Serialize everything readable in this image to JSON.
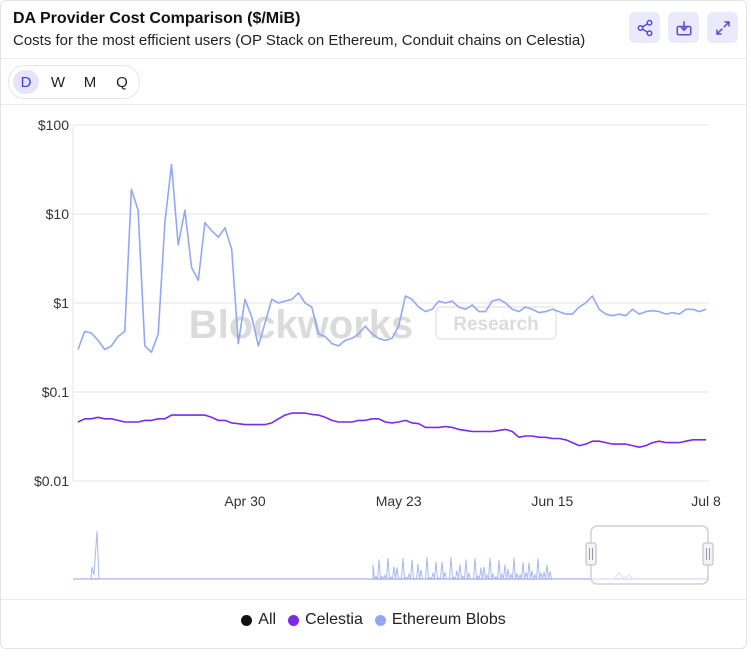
{
  "header": {
    "title": "DA Provider Cost Comparison ($/MiB)",
    "subtitle": "Costs for the most efficient users (OP Stack on Ethereum, Conduit chains on Celestia)"
  },
  "toolbar": {
    "share_icon": "share-icon",
    "download_icon": "download-icon",
    "expand_icon": "expand-icon"
  },
  "timeframes": {
    "options": [
      "D",
      "W",
      "M",
      "Q"
    ],
    "selected": "D"
  },
  "watermark": {
    "brand": "Blockworks",
    "tag": "Research"
  },
  "colors": {
    "celestia": "#7c2ae8",
    "ethereum_blobs": "#93a8f2",
    "all": "#111111",
    "active_tab": "#e6e4fb"
  },
  "legend": {
    "items": [
      {
        "label": "All",
        "color": "#111111"
      },
      {
        "label": "Celestia",
        "color": "#7c2ae8"
      },
      {
        "label": "Ethereum Blobs",
        "color": "#93a8f2"
      }
    ]
  },
  "chart_data": {
    "type": "line",
    "title": "DA Provider Cost Comparison ($/MiB)",
    "subtitle": "Costs for the most efficient users (OP Stack on Ethereum, Conduit chains on Celestia)",
    "y_scale": "log",
    "ylim": [
      0.01,
      100
    ],
    "y_ticks": [
      "$100",
      "$10",
      "$1",
      "$0.1",
      "$0.01"
    ],
    "y_tick_values": [
      100,
      10,
      1,
      0.1,
      0.01
    ],
    "x_ticks": [
      "Apr 30",
      "May 23",
      "Jun 15",
      "Jul 8"
    ],
    "x": [
      "Apr 5",
      "Apr 6",
      "Apr 7",
      "Apr 8",
      "Apr 9",
      "Apr 10",
      "Apr 11",
      "Apr 12",
      "Apr 13",
      "Apr 14",
      "Apr 15",
      "Apr 16",
      "Apr 17",
      "Apr 18",
      "Apr 19",
      "Apr 20",
      "Apr 21",
      "Apr 22",
      "Apr 23",
      "Apr 24",
      "Apr 25",
      "Apr 26",
      "Apr 27",
      "Apr 28",
      "Apr 29",
      "Apr 30",
      "May 1",
      "May 2",
      "May 3",
      "May 4",
      "May 5",
      "May 6",
      "May 7",
      "May 8",
      "May 9",
      "May 10",
      "May 11",
      "May 12",
      "May 13",
      "May 14",
      "May 15",
      "May 16",
      "May 17",
      "May 18",
      "May 19",
      "May 20",
      "May 21",
      "May 22",
      "May 23",
      "May 24",
      "May 25",
      "May 26",
      "May 27",
      "May 28",
      "May 29",
      "May 30",
      "May 31",
      "Jun 1",
      "Jun 2",
      "Jun 3",
      "Jun 4",
      "Jun 5",
      "Jun 6",
      "Jun 7",
      "Jun 8",
      "Jun 9",
      "Jun 10",
      "Jun 11",
      "Jun 12",
      "Jun 13",
      "Jun 14",
      "Jun 15",
      "Jun 16",
      "Jun 17",
      "Jun 18",
      "Jun 19",
      "Jun 20",
      "Jun 21",
      "Jun 22",
      "Jun 23",
      "Jun 24",
      "Jun 25",
      "Jun 26",
      "Jun 27",
      "Jun 28",
      "Jun 29",
      "Jun 30",
      "Jul 1",
      "Jul 2",
      "Jul 3",
      "Jul 4",
      "Jul 5",
      "Jul 6",
      "Jul 7",
      "Jul 8"
    ],
    "series": [
      {
        "name": "Ethereum Blobs",
        "color": "#93a8f2",
        "values": [
          0.3,
          0.48,
          0.46,
          0.38,
          0.3,
          0.33,
          0.42,
          0.48,
          19,
          11,
          0.33,
          0.28,
          0.45,
          8,
          36,
          4.5,
          11,
          2.5,
          1.8,
          8,
          6.5,
          5.5,
          7,
          4,
          0.35,
          1.1,
          0.7,
          0.33,
          0.6,
          1.1,
          1.0,
          1.05,
          1.1,
          1.3,
          1.0,
          0.9,
          0.45,
          0.42,
          0.35,
          0.33,
          0.38,
          0.4,
          0.45,
          0.55,
          0.45,
          0.4,
          0.38,
          0.4,
          0.55,
          1.2,
          1.1,
          0.9,
          0.8,
          0.85,
          1.05,
          1.0,
          1.05,
          0.9,
          0.85,
          0.95,
          0.8,
          0.8,
          1.05,
          1.1,
          1.0,
          0.85,
          0.8,
          0.9,
          0.85,
          0.78,
          0.8,
          0.85,
          0.8,
          0.75,
          0.75,
          0.9,
          1.0,
          1.2,
          0.85,
          0.75,
          0.72,
          0.75,
          0.72,
          0.85,
          0.75,
          0.8,
          0.82,
          0.8,
          0.75,
          0.78,
          0.75,
          0.85,
          0.85,
          0.8,
          0.85
        ]
      },
      {
        "name": "Celestia",
        "color": "#7c2ae8",
        "values": [
          0.046,
          0.05,
          0.05,
          0.052,
          0.05,
          0.05,
          0.048,
          0.046,
          0.046,
          0.046,
          0.048,
          0.048,
          0.05,
          0.05,
          0.055,
          0.055,
          0.055,
          0.055,
          0.055,
          0.055,
          0.052,
          0.048,
          0.048,
          0.045,
          0.044,
          0.043,
          0.043,
          0.043,
          0.043,
          0.045,
          0.05,
          0.055,
          0.058,
          0.058,
          0.058,
          0.056,
          0.055,
          0.052,
          0.048,
          0.046,
          0.046,
          0.046,
          0.048,
          0.048,
          0.05,
          0.05,
          0.046,
          0.045,
          0.046,
          0.048,
          0.045,
          0.044,
          0.04,
          0.04,
          0.04,
          0.041,
          0.04,
          0.038,
          0.037,
          0.036,
          0.036,
          0.036,
          0.036,
          0.037,
          0.038,
          0.036,
          0.031,
          0.032,
          0.032,
          0.031,
          0.031,
          0.03,
          0.03,
          0.029,
          0.027,
          0.025,
          0.026,
          0.028,
          0.028,
          0.027,
          0.026,
          0.026,
          0.026,
          0.025,
          0.024,
          0.025,
          0.027,
          0.028,
          0.027,
          0.027,
          0.027,
          0.028,
          0.029,
          0.029,
          0.029
        ]
      }
    ],
    "grid": true,
    "legend_position": "bottom-center",
    "navigator": true
  }
}
